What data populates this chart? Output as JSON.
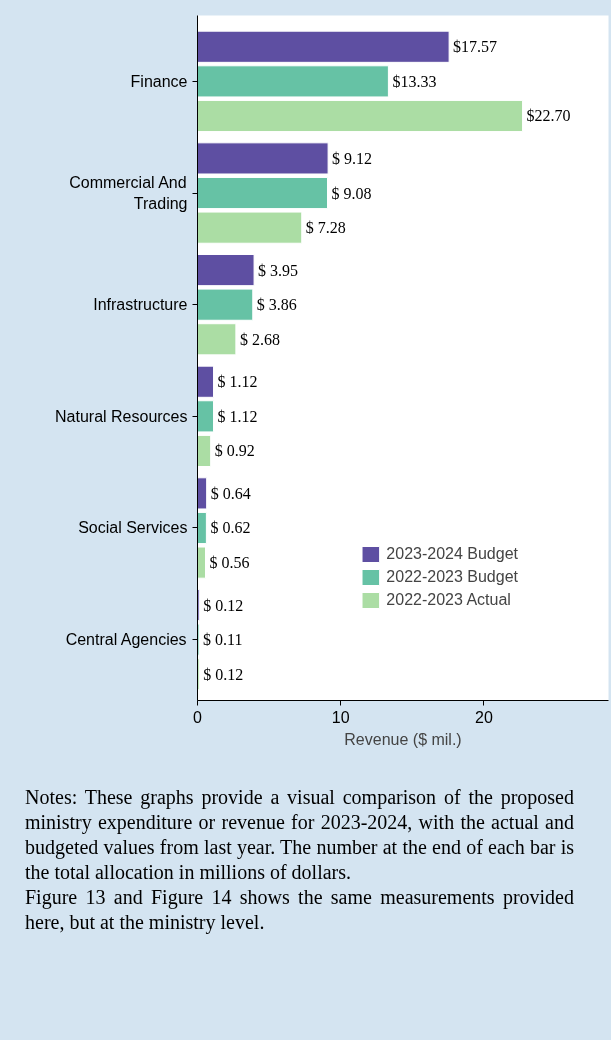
{
  "chart_data": {
    "type": "bar",
    "orientation": "horizontal",
    "categories": [
      "Finance",
      "Commercial And Trading",
      "Infrastructure",
      "Natural Resources",
      "Social Services",
      "Central Agencies"
    ],
    "series": [
      {
        "name": "2023-2024 Budget",
        "color": "#5e4fa2",
        "values": [
          17.57,
          9.12,
          3.95,
          1.12,
          0.64,
          0.12
        ],
        "value_labels": [
          "$17.57",
          "$ 9.12",
          "$ 3.95",
          "$ 1.12",
          "$ 0.64",
          "$ 0.12"
        ]
      },
      {
        "name": "2022-2023 Budget",
        "color": "#66c2a5",
        "values": [
          13.33,
          9.08,
          3.86,
          1.12,
          0.62,
          0.11
        ],
        "value_labels": [
          "$13.33",
          "$ 9.08",
          "$ 3.86",
          "$ 1.12",
          "$ 0.62",
          "$ 0.11"
        ]
      },
      {
        "name": "2022-2023 Actual",
        "color": "#abdda4",
        "values": [
          22.7,
          7.28,
          2.68,
          0.92,
          0.56,
          0.12
        ],
        "value_labels": [
          "$22.70",
          "$ 7.28",
          "$ 2.68",
          "$ 0.92",
          "$ 0.56",
          "$ 0.12"
        ]
      }
    ],
    "xlabel": "Revenue ($ mil.)",
    "xlim": [
      0,
      28.7
    ],
    "xticks": [
      0,
      10,
      20
    ],
    "grid": false,
    "legend": "bottom right",
    "annotations": [
      "Notes: These graphs provide a visual comparison of the proposed ministry expenditure or revenue for 2023-2024, with the actual and budgeted values from last year. The number at the end of each bar is the total allocation in millions of dollars.",
      "Figure 13 and Figure 14 shows the same measurements provided here, but at the ministry level."
    ]
  }
}
